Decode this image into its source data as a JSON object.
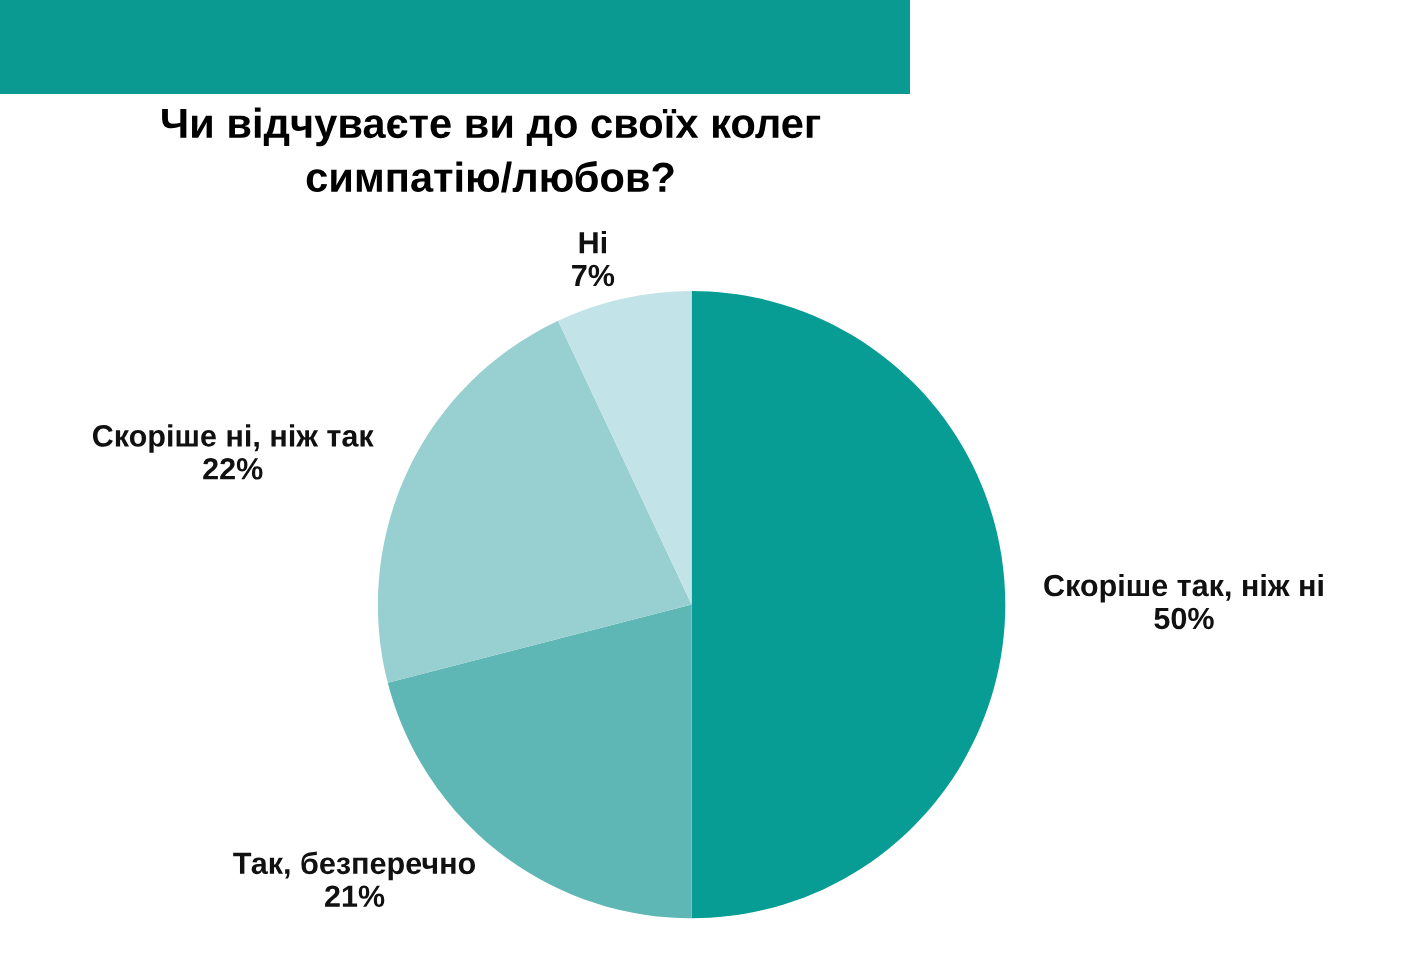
{
  "chart_data": {
    "type": "pie",
    "title": "Чи відчуваєте ви до своїх колег\nсимпатію/любов?",
    "categories": [
      "Скоріше так, ніж ні",
      "Так, безперечно",
      "Скоріше ні, ніж так",
      "Ні"
    ],
    "values": [
      50,
      21,
      22,
      7
    ],
    "value_labels": [
      "50%",
      "21%",
      "22%",
      "7%"
    ],
    "colors": [
      "#079c94",
      "#5fb7b5",
      "#98cfd1",
      "#c2e4e8"
    ]
  }
}
